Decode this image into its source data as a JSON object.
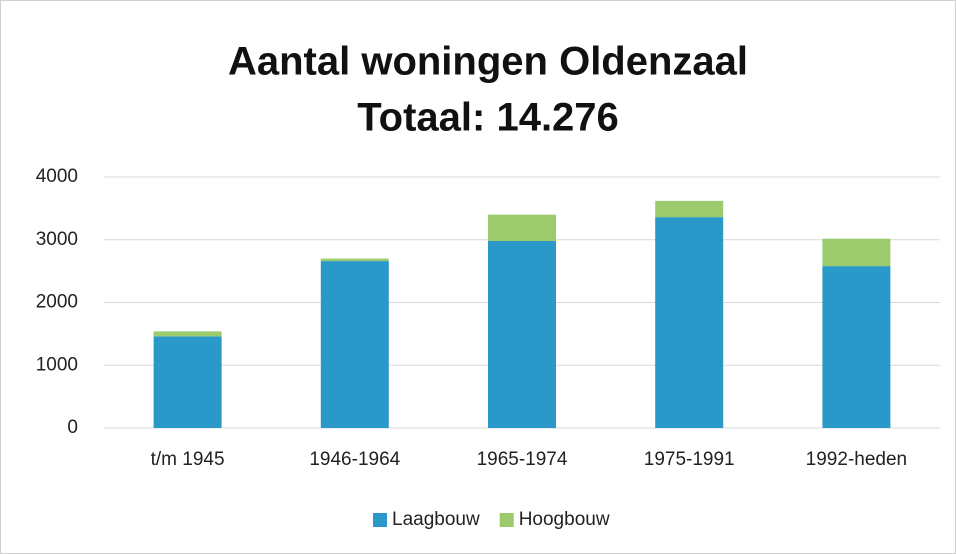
{
  "chart_data": {
    "type": "stacked_bar",
    "title": "Aantal woningen Oldenzaal",
    "subtitle": "Totaal: 14.276",
    "categories": [
      "t/m 1945",
      "1946-1964",
      "1965-1974",
      "1975-1991",
      "1992-heden"
    ],
    "series": [
      {
        "name": "Laagbouw",
        "color": "#2a98c8",
        "values": [
          1460,
          2660,
          2980,
          3360,
          2580
        ]
      },
      {
        "name": "Hoogbouw",
        "color": "#9ccb6e",
        "values": [
          80,
          40,
          420,
          260,
          436
        ]
      }
    ],
    "ylim": [
      0,
      4000
    ],
    "yticks": [
      0,
      1000,
      2000,
      3000,
      4000
    ],
    "grid": true,
    "legend": "bottom"
  }
}
